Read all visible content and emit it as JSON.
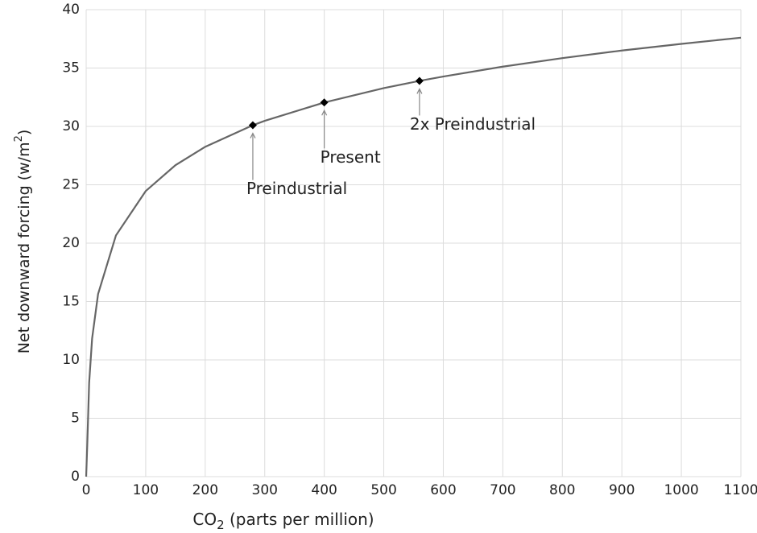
{
  "chart_data": {
    "type": "line",
    "x_label": {
      "main": "CO",
      "sub": "2",
      "rest": " (parts per million)"
    },
    "y_label": {
      "main": "Net downward forcing (w/m",
      "sup": "2",
      "rest": ")"
    },
    "x": [
      0,
      2,
      5,
      10,
      20,
      50,
      100,
      150,
      200,
      280,
      300,
      400,
      500,
      560,
      600,
      700,
      800,
      900,
      1000,
      1100
    ],
    "series": [
      {
        "color": "#666666",
        "values": [
          0,
          3.0,
          8.04,
          11.84,
          15.64,
          20.66,
          24.46,
          26.68,
          28.25,
          30.1,
          30.48,
          32.05,
          33.28,
          33.9,
          34.27,
          35.12,
          35.85,
          36.5,
          37.07,
          37.6
        ]
      }
    ],
    "markers": {
      "color": "#000000",
      "x": [
        280,
        400,
        560
      ],
      "values": [
        30.1,
        32.05,
        33.9
      ],
      "labels": [
        "Preindustrial",
        "Present",
        "2x Preindustrial"
      ]
    },
    "xlim": [
      0,
      1100
    ],
    "xticks": [
      0,
      100,
      200,
      300,
      400,
      500,
      600,
      700,
      800,
      900,
      1000,
      1100
    ],
    "ylim": [
      0,
      40
    ],
    "yticks": [
      0,
      5,
      10,
      15,
      20,
      25,
      30,
      35,
      40
    ],
    "grid": true
  }
}
